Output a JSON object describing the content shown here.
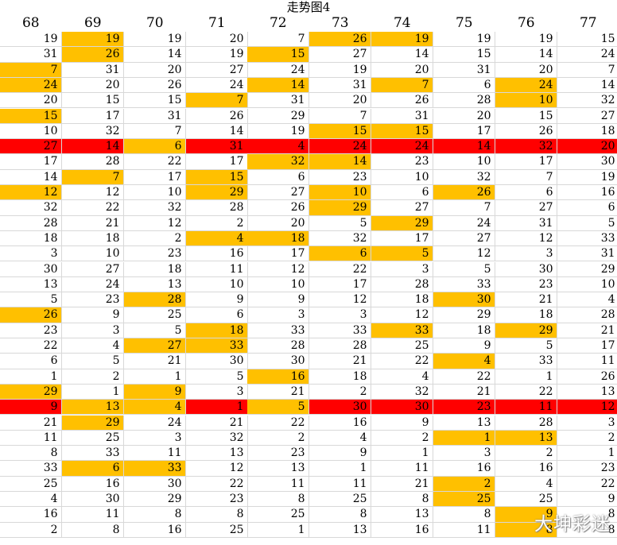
{
  "title": "走势图4",
  "watermark": "大坤彩迷",
  "colors": {
    "highlight": "#ffc000",
    "marker": "#ff0000",
    "gridline": "#d8d8d8"
  },
  "columns": [
    "68",
    "69",
    "70",
    "71",
    "72",
    "73",
    "74",
    "75",
    "76",
    "77"
  ],
  "rows": [
    [
      "19",
      "19",
      "19",
      "20",
      "7",
      "26",
      "19",
      "19",
      "19",
      "15"
    ],
    [
      "31",
      "26",
      "14",
      "19",
      "15",
      "27",
      "14",
      "15",
      "14",
      "24"
    ],
    [
      "7",
      "31",
      "20",
      "27",
      "24",
      "19",
      "20",
      "31",
      "20",
      "7"
    ],
    [
      "24",
      "20",
      "26",
      "24",
      "14",
      "31",
      "7",
      "6",
      "24",
      "14"
    ],
    [
      "20",
      "15",
      "15",
      "7",
      "31",
      "20",
      "26",
      "28",
      "10",
      "32"
    ],
    [
      "15",
      "17",
      "31",
      "26",
      "29",
      "7",
      "31",
      "20",
      "15",
      "27"
    ],
    [
      "10",
      "32",
      "7",
      "14",
      "19",
      "15",
      "15",
      "17",
      "26",
      "18"
    ],
    [
      "27",
      "14",
      "6",
      "31",
      "4",
      "24",
      "24",
      "14",
      "32",
      "20"
    ],
    [
      "17",
      "28",
      "22",
      "17",
      "32",
      "14",
      "23",
      "10",
      "17",
      "30"
    ],
    [
      "14",
      "7",
      "17",
      "15",
      "6",
      "23",
      "10",
      "32",
      "7",
      "19"
    ],
    [
      "12",
      "12",
      "10",
      "29",
      "27",
      "10",
      "6",
      "26",
      "6",
      "16"
    ],
    [
      "32",
      "22",
      "32",
      "28",
      "26",
      "29",
      "27",
      "7",
      "27",
      "6"
    ],
    [
      "28",
      "21",
      "12",
      "2",
      "20",
      "5",
      "29",
      "24",
      "31",
      "5"
    ],
    [
      "18",
      "18",
      "2",
      "4",
      "18",
      "32",
      "17",
      "27",
      "12",
      "33"
    ],
    [
      "3",
      "10",
      "23",
      "16",
      "17",
      "6",
      "5",
      "12",
      "3",
      "31"
    ],
    [
      "30",
      "27",
      "18",
      "11",
      "12",
      "22",
      "3",
      "5",
      "30",
      "29"
    ],
    [
      "13",
      "24",
      "13",
      "10",
      "10",
      "17",
      "28",
      "33",
      "23",
      "10"
    ],
    [
      "5",
      "23",
      "28",
      "9",
      "9",
      "12",
      "18",
      "30",
      "21",
      "4"
    ],
    [
      "26",
      "9",
      "25",
      "6",
      "3",
      "3",
      "12",
      "29",
      "18",
      "28"
    ],
    [
      "23",
      "3",
      "5",
      "18",
      "33",
      "33",
      "33",
      "18",
      "29",
      "21"
    ],
    [
      "22",
      "4",
      "27",
      "33",
      "28",
      "28",
      "25",
      "9",
      "5",
      "17"
    ],
    [
      "6",
      "5",
      "21",
      "30",
      "30",
      "21",
      "22",
      "4",
      "33",
      "11"
    ],
    [
      "1",
      "2",
      "1",
      "5",
      "16",
      "18",
      "4",
      "22",
      "1",
      "26"
    ],
    [
      "29",
      "1",
      "9",
      "3",
      "21",
      "2",
      "32",
      "21",
      "22",
      "13"
    ],
    [
      "9",
      "13",
      "4",
      "1",
      "5",
      "30",
      "30",
      "23",
      "11",
      "12"
    ],
    [
      "21",
      "29",
      "24",
      "21",
      "22",
      "16",
      "9",
      "13",
      "28",
      "3"
    ],
    [
      "11",
      "25",
      "3",
      "32",
      "2",
      "4",
      "2",
      "1",
      "13",
      "2"
    ],
    [
      "8",
      "33",
      "11",
      "13",
      "23",
      "9",
      "1",
      "3",
      "2",
      "1"
    ],
    [
      "33",
      "6",
      "33",
      "12",
      "13",
      "1",
      "11",
      "16",
      "16",
      "23"
    ],
    [
      "25",
      "16",
      "30",
      "22",
      "11",
      "11",
      "21",
      "2",
      "4",
      "22"
    ],
    [
      "4",
      "30",
      "29",
      "23",
      "8",
      "25",
      "8",
      "25",
      "25",
      "9"
    ],
    [
      "16",
      "11",
      "8",
      "8",
      "25",
      "8",
      "13",
      "8",
      "9",
      "8"
    ],
    [
      "2",
      "8",
      "16",
      "25",
      "1",
      "13",
      "16",
      "11",
      "8",
      "8"
    ]
  ],
  "highlights": [
    [
      0,
      1
    ],
    [
      0,
      5
    ],
    [
      0,
      6
    ],
    [
      1,
      1
    ],
    [
      1,
      4
    ],
    [
      2,
      0
    ],
    [
      3,
      0
    ],
    [
      3,
      4
    ],
    [
      3,
      6
    ],
    [
      3,
      8
    ],
    [
      4,
      3
    ],
    [
      4,
      8
    ],
    [
      5,
      0
    ],
    [
      6,
      5
    ],
    [
      6,
      6
    ],
    [
      7,
      2
    ],
    [
      8,
      4
    ],
    [
      8,
      5
    ],
    [
      9,
      1
    ],
    [
      9,
      3
    ],
    [
      10,
      0
    ],
    [
      10,
      3
    ],
    [
      10,
      5
    ],
    [
      10,
      7
    ],
    [
      11,
      5
    ],
    [
      12,
      6
    ],
    [
      13,
      3
    ],
    [
      13,
      4
    ],
    [
      14,
      5
    ],
    [
      14,
      6
    ],
    [
      17,
      2
    ],
    [
      17,
      7
    ],
    [
      18,
      0
    ],
    [
      19,
      3
    ],
    [
      19,
      6
    ],
    [
      19,
      8
    ],
    [
      20,
      2
    ],
    [
      20,
      3
    ],
    [
      21,
      7
    ],
    [
      22,
      4
    ],
    [
      23,
      0
    ],
    [
      23,
      2
    ],
    [
      24,
      1
    ],
    [
      24,
      2
    ],
    [
      24,
      4
    ],
    [
      25,
      1
    ],
    [
      26,
      7
    ],
    [
      26,
      8
    ],
    [
      28,
      1
    ],
    [
      28,
      2
    ],
    [
      29,
      7
    ],
    [
      30,
      7
    ],
    [
      31,
      8
    ],
    [
      32,
      8
    ]
  ],
  "marker_rows": [
    7,
    24
  ]
}
